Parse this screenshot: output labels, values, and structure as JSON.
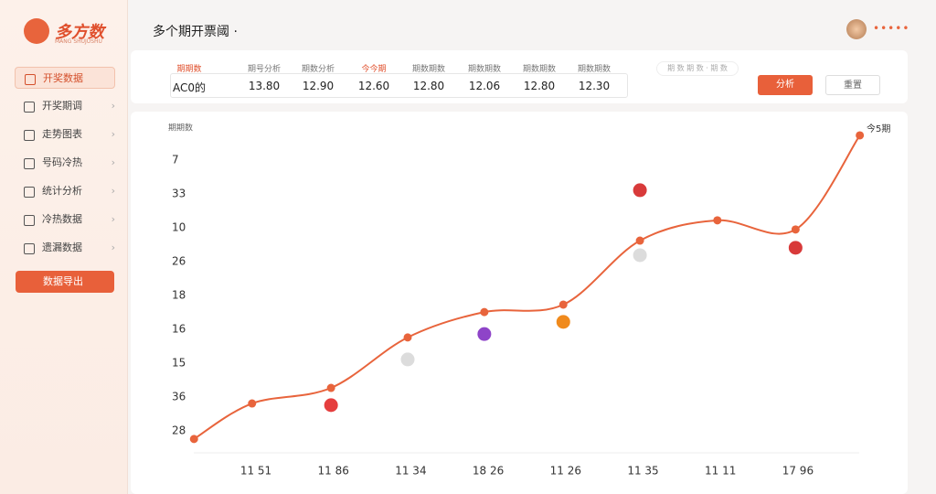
{
  "sidebar": {
    "logo": "多方数",
    "logo_sub": "MANG SHUJUSHU",
    "menu": [
      "开奖数据",
      "开奖期调",
      "走势图表",
      "号码冷热",
      "统计分析",
      "冷热数据",
      "遗漏数据"
    ],
    "action": "数据导出"
  },
  "header": {
    "title": "多个期开票阈 ·"
  },
  "table": {
    "headers": [
      "期期数",
      "期号分析",
      "期数分析",
      "今今期",
      "期数期数",
      "期数期数",
      "期数期数",
      "期数期数"
    ],
    "row": [
      "AC0的",
      "13.80",
      "12.90",
      "12.60",
      "12.80",
      "12.06",
      "12.80",
      "12.30"
    ],
    "filter": "期 数 期 数 · 期 数",
    "buttons": [
      "分析",
      "重置"
    ]
  },
  "chart_data": {
    "type": "line",
    "ylabel": "期期数",
    "annotation": "今5期",
    "y_labels": [
      "28",
      "36",
      "15",
      "16",
      "18",
      "26",
      "10",
      "33",
      "7"
    ],
    "x_labels": [
      "11 51",
      "11 86",
      "11 34",
      "18 26",
      "11 26",
      "11 35",
      "11 11",
      "17 96"
    ],
    "series": [
      {
        "color": "#e8643c",
        "x": [
          -0.8,
          -0.05,
          0.97,
          1.96,
          2.95,
          3.97,
          4.96,
          5.96,
          6.97,
          7.8
        ],
        "values": [
          -0.24,
          0.81,
          1.27,
          2.76,
          3.51,
          3.73,
          5.62,
          6.22,
          5.95,
          8.73
        ]
      }
    ],
    "points": [
      {
        "x": 0.97,
        "value": 0.76,
        "color": "#e53e3e"
      },
      {
        "x": 1.96,
        "value": 2.11,
        "color": "#dcdcdc"
      },
      {
        "x": 2.95,
        "value": 2.86,
        "color": "#8e44c8"
      },
      {
        "x": 3.97,
        "value": 3.22,
        "color": "#f08a1c"
      },
      {
        "x": 4.96,
        "value": 7.11,
        "color": "#d83a3a"
      },
      {
        "x": 4.96,
        "value": 5.19,
        "color": "#dcdcdc"
      },
      {
        "x": 6.97,
        "value": 5.41,
        "color": "#d83a3a"
      }
    ]
  }
}
